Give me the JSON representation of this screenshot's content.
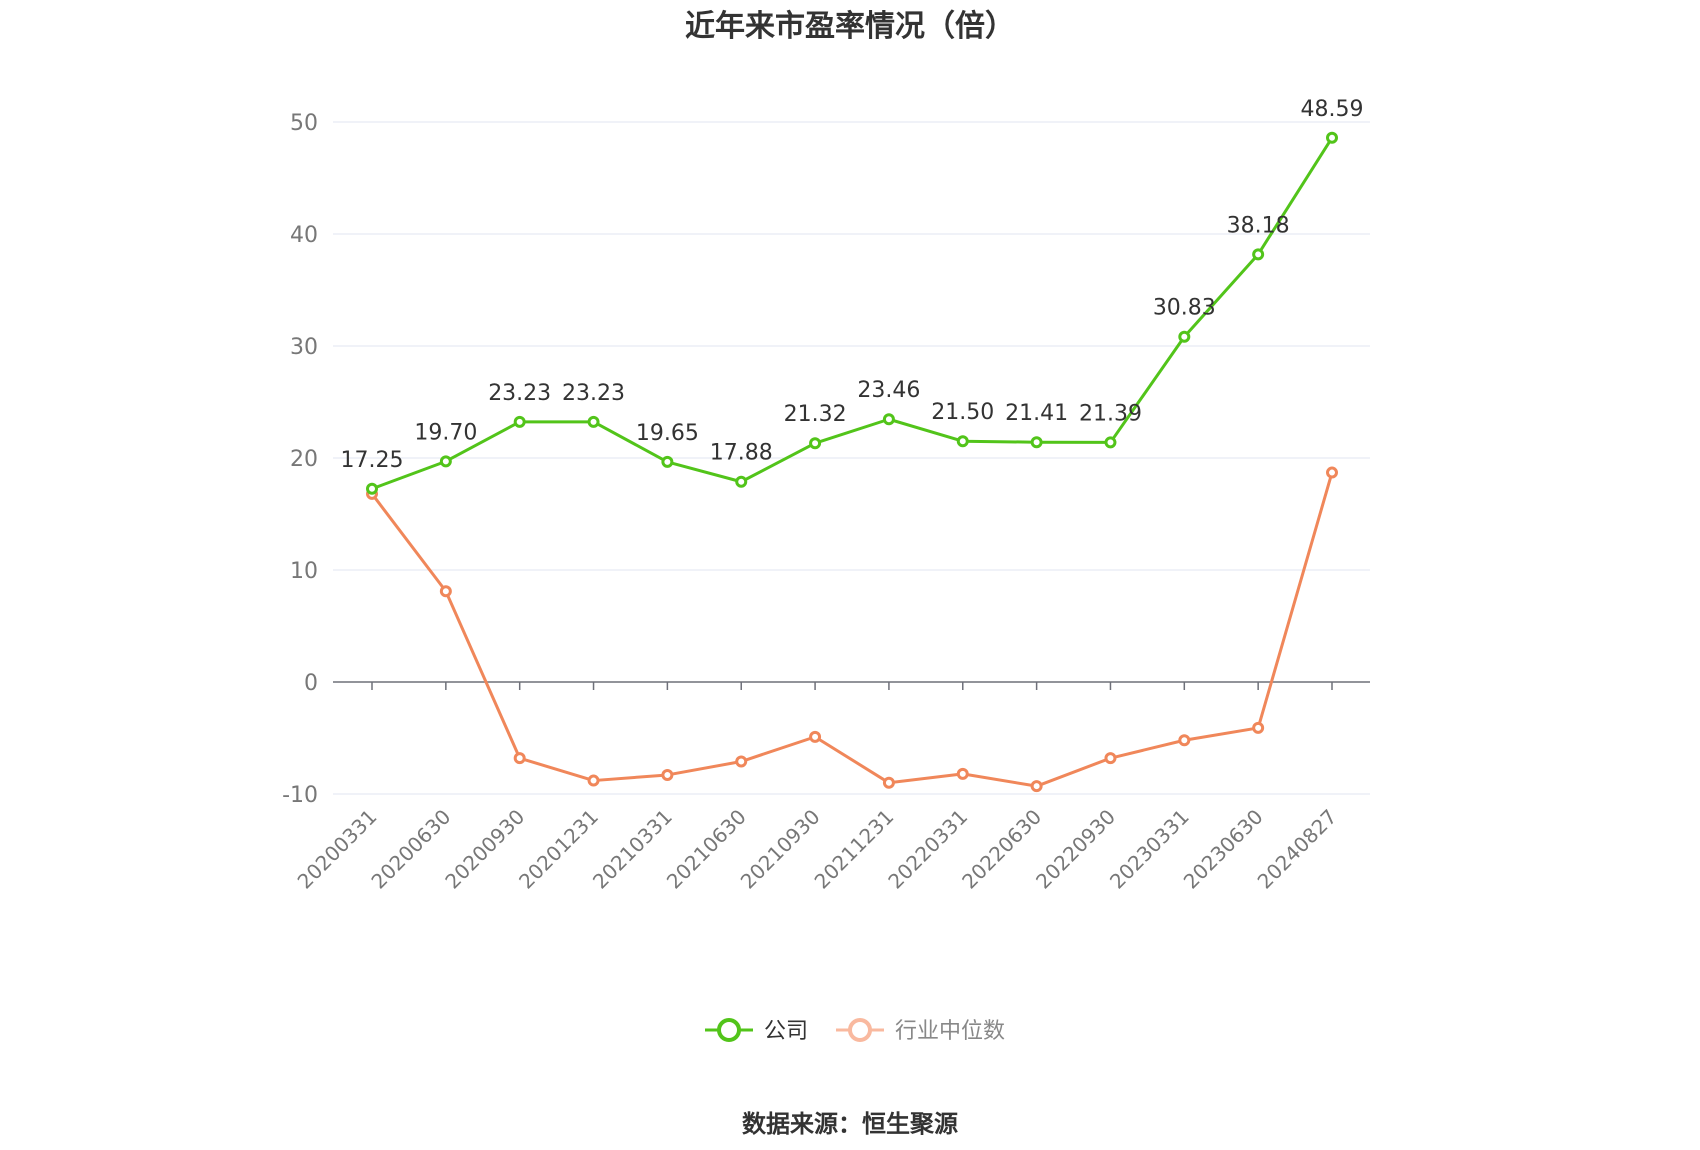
{
  "chart_data": {
    "type": "line",
    "title": "近年来市盈率情况（倍）",
    "categories": [
      "20200331",
      "20200630",
      "20200930",
      "20201231",
      "20210331",
      "20210630",
      "20210930",
      "20211231",
      "20220331",
      "20220630",
      "20220930",
      "20230331",
      "20230630",
      "20240827"
    ],
    "series": [
      {
        "name": "公司",
        "color": "#52c41a",
        "values": [
          17.25,
          19.7,
          23.23,
          23.23,
          19.65,
          17.88,
          21.32,
          23.46,
          21.5,
          21.41,
          21.39,
          30.83,
          38.18,
          48.59
        ],
        "labels": [
          "17.25",
          "19.70",
          "23.23",
          "23.23",
          "19.65",
          "17.88",
          "21.32",
          "23.46",
          "21.50",
          "21.41",
          "21.39",
          "30.83",
          "38.18",
          "48.59"
        ]
      },
      {
        "name": "行业中位数",
        "color": "#f0875a",
        "values": [
          16.8,
          8.1,
          -6.8,
          -8.8,
          -8.3,
          -7.1,
          -4.9,
          -9.0,
          -8.2,
          -9.3,
          -6.8,
          -5.2,
          -4.1,
          18.7
        ]
      }
    ],
    "yticks": [
      50,
      40,
      30,
      20,
      10,
      0,
      -10
    ],
    "ylim": [
      -10,
      50
    ],
    "grid": true,
    "legend": "bottom-center"
  },
  "legend": {
    "company_label": "公司",
    "industry_label": "行业中位数",
    "company_color": "#52c41a",
    "industry_color": "#f0875a",
    "industry_text_color": "#888888"
  },
  "source": "数据来源：恒生聚源"
}
